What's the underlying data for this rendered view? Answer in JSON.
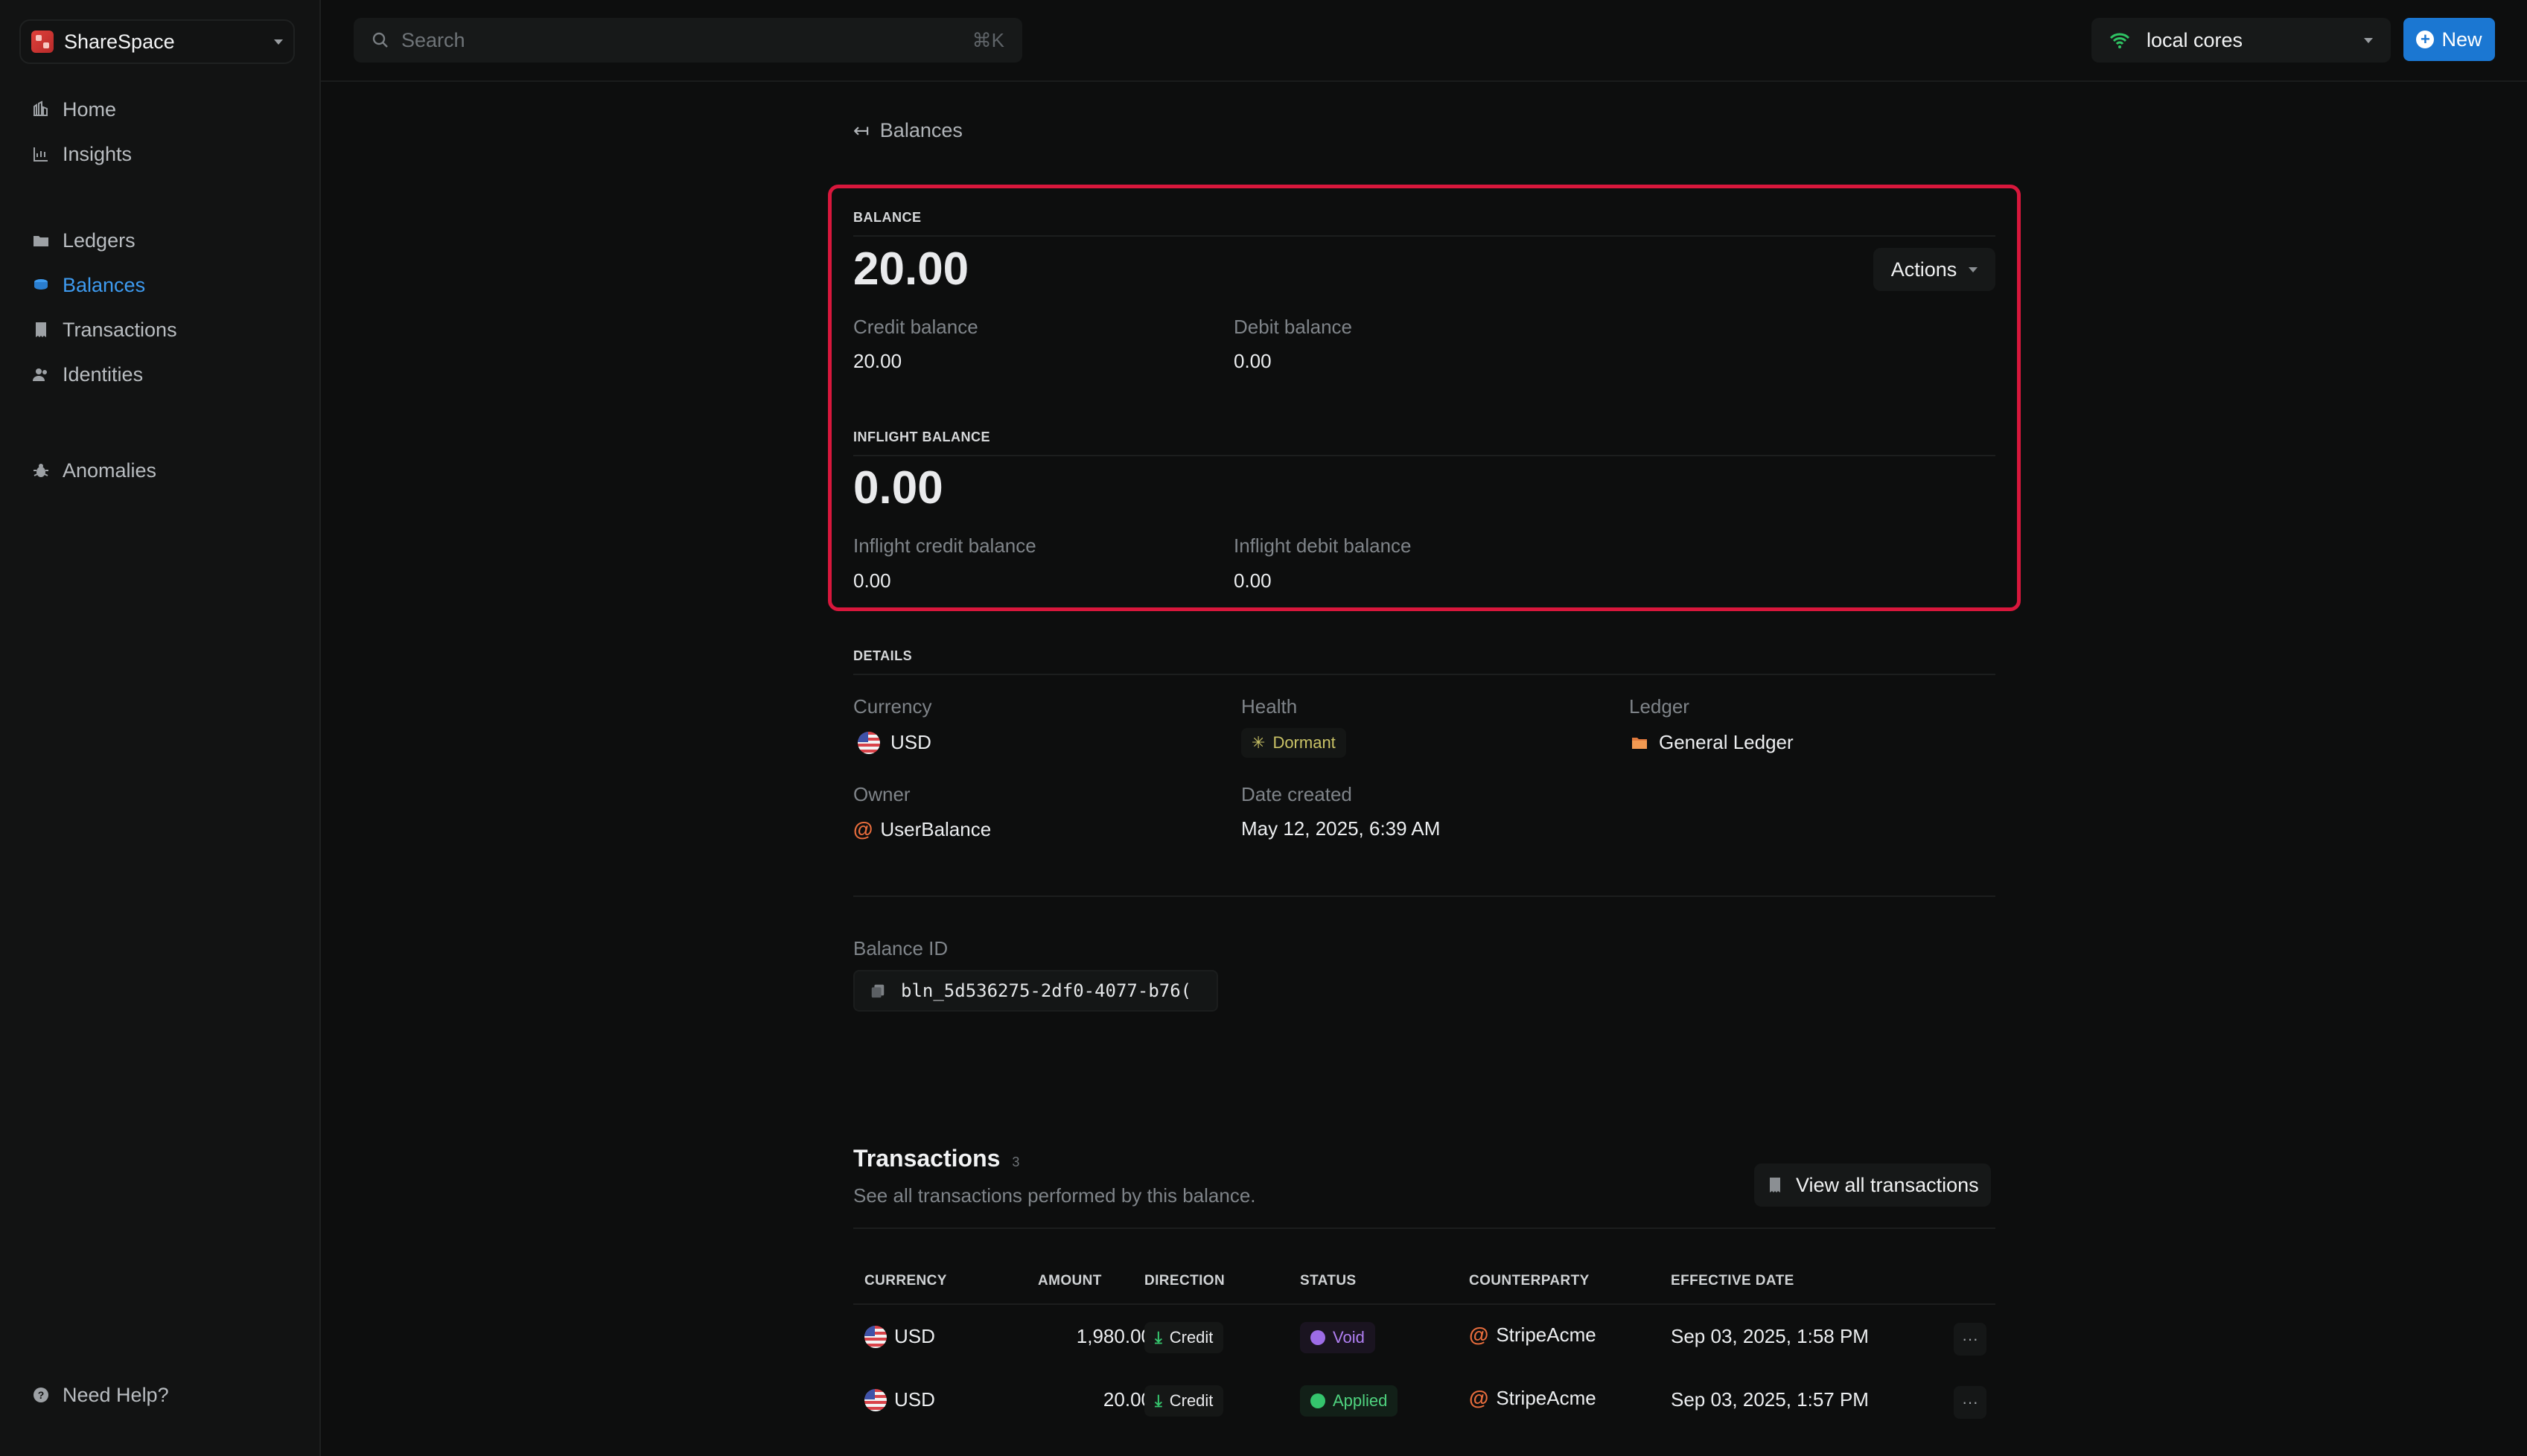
{
  "workspace": {
    "name": "ShareSpace"
  },
  "sidebar": {
    "items": [
      {
        "label": "Home"
      },
      {
        "label": "Insights"
      },
      {
        "label": "Ledgers"
      },
      {
        "label": "Balances"
      },
      {
        "label": "Transactions"
      },
      {
        "label": "Identities"
      },
      {
        "label": "Anomalies"
      }
    ],
    "help": "Need Help?"
  },
  "topbar": {
    "search_placeholder": "Search",
    "search_shortcut": "⌘K",
    "core": "local cores",
    "new_label": "New"
  },
  "back": {
    "label": "Balances"
  },
  "balance": {
    "section_label": "BALANCE",
    "value": "20.00",
    "actions_label": "Actions",
    "credit_label": "Credit balance",
    "credit_value": "20.00",
    "debit_label": "Debit balance",
    "debit_value": "0.00"
  },
  "inflight": {
    "section_label": "INFLIGHT BALANCE",
    "value": "0.00",
    "credit_label": "Inflight credit balance",
    "credit_value": "0.00",
    "debit_label": "Inflight debit balance",
    "debit_value": "0.00"
  },
  "details": {
    "section_label": "DETAILS",
    "currency_label": "Currency",
    "currency_value": "USD",
    "health_label": "Health",
    "health_value": "Dormant",
    "ledger_label": "Ledger",
    "ledger_value": "General Ledger",
    "owner_label": "Owner",
    "owner_value": "UserBalance",
    "date_label": "Date created",
    "date_value": "May 12, 2025, 6:39 AM",
    "balance_id_label": "Balance ID",
    "balance_id_value": "bln_5d536275-2df0-4077-b76("
  },
  "transactions": {
    "title": "Transactions",
    "count": "3",
    "subtitle": "See all transactions performed by this balance.",
    "view_all_label": "View all transactions",
    "columns": [
      "CURRENCY",
      "AMOUNT",
      "DIRECTION",
      "STATUS",
      "COUNTERPARTY",
      "EFFECTIVE DATE"
    ],
    "rows": [
      {
        "currency": "USD",
        "amount": "1,980.00",
        "direction": "Credit",
        "status": "Void",
        "counterparty": "StripeAcme",
        "date": "Sep 03, 2025, 1:58 PM"
      },
      {
        "currency": "USD",
        "amount": "20.00",
        "direction": "Credit",
        "status": "Applied",
        "counterparty": "StripeAcme",
        "date": "Sep 03, 2025, 1:57 PM"
      }
    ]
  },
  "colors": {
    "accent": "#1b77d2",
    "active_nav": "#3e9bf0",
    "highlight": "#d8173c",
    "dormant": "#c9c266",
    "void": "#b07ff2",
    "applied": "#4fd27f"
  }
}
